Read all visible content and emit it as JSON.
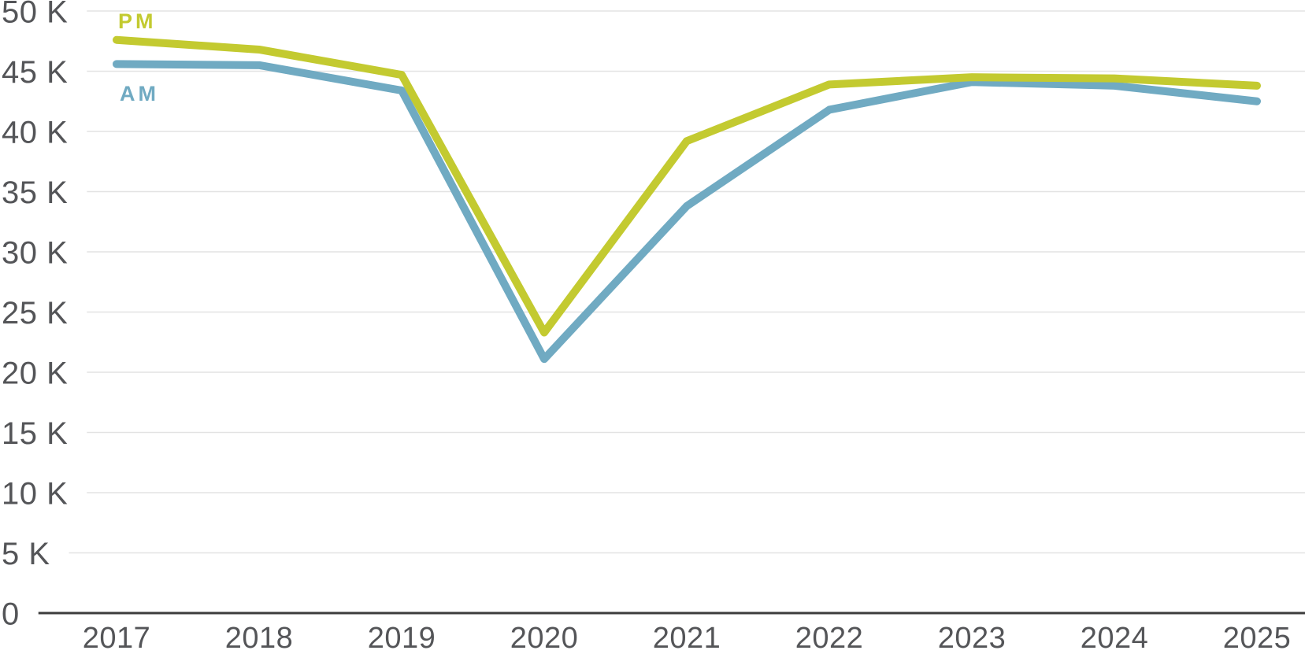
{
  "chart_data": {
    "type": "line",
    "x_labels": [
      "2017",
      "2018",
      "2019",
      "2020",
      "2021",
      "2022",
      "2023",
      "2024",
      "2025"
    ],
    "y_unit": "K",
    "ylim": [
      0,
      50
    ],
    "grid": true,
    "y_ticks": [
      {
        "label": "50 K",
        "value": 50
      },
      {
        "label": "45 K",
        "value": 45
      },
      {
        "label": "40 K",
        "value": 40
      },
      {
        "label": "35 K",
        "value": 35
      },
      {
        "label": "30 K",
        "value": 30
      },
      {
        "label": "25 K",
        "value": 25
      },
      {
        "label": "20 K",
        "value": 20
      },
      {
        "label": "15 K",
        "value": 15
      },
      {
        "label": "10 K",
        "value": 10
      },
      {
        "label": "5 K",
        "value": 5
      },
      {
        "label": "0",
        "value": 0
      }
    ],
    "series": [
      {
        "name": "PM",
        "color": "#c3ca30",
        "values_thousands": [
          47.6,
          46.8,
          44.7,
          23.3,
          39.2,
          43.9,
          44.5,
          44.4,
          43.8
        ]
      },
      {
        "name": "AM",
        "color": "#70aac2",
        "values_thousands": [
          45.6,
          45.5,
          43.4,
          21.1,
          33.8,
          41.8,
          44.1,
          43.8,
          42.5
        ]
      }
    ],
    "legend": {
      "position": "inline-near-line-start",
      "entries": [
        "PM",
        "AM"
      ]
    }
  },
  "colors": {
    "axis_text": "#545558",
    "gridline": "#e3e3e3",
    "axis_line": "#3c3c3c",
    "background": "#ffffff"
  }
}
